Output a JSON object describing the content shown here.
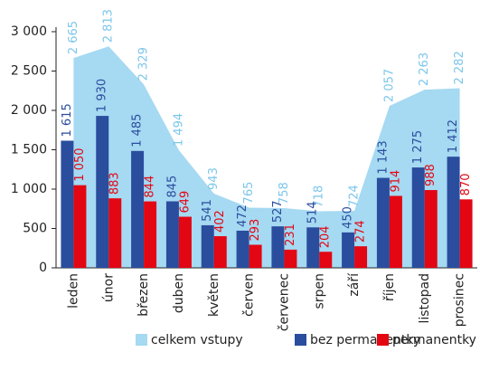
{
  "chart_data": {
    "type": "bar",
    "categories": [
      "leden",
      "únor",
      "březen",
      "duben",
      "květen",
      "červen",
      "červenec",
      "srpen",
      "září",
      "říjen",
      "listopad",
      "prosinec"
    ],
    "series": [
      {
        "name": "celkem vstupy",
        "type": "area",
        "color": "#a6d9f2",
        "label_color": "#7cc6ea",
        "values": [
          2665,
          2813,
          2329,
          1494,
          943,
          765,
          758,
          718,
          724,
          2057,
          2263,
          2282
        ],
        "value_labels": [
          "2 665",
          "2 813",
          "2 329",
          "1 494",
          "943",
          "765",
          "758",
          "718",
          "724",
          "2 057",
          "2 263",
          "2 282"
        ]
      },
      {
        "name": "bez permanentky",
        "type": "bar",
        "color": "#2a4d9e",
        "label_color": "#2a4d9e",
        "values": [
          1615,
          1930,
          1485,
          845,
          541,
          472,
          527,
          514,
          450,
          1143,
          1275,
          1412
        ],
        "value_labels": [
          "1 615",
          "1 930",
          "1 485",
          "845",
          "541",
          "472",
          "527",
          "514",
          "450",
          "1 143",
          "1 275",
          "1 412"
        ]
      },
      {
        "name": "permanentky",
        "type": "bar",
        "color": "#e30613",
        "label_color": "#e30613",
        "values": [
          1050,
          883,
          844,
          649,
          402,
          293,
          231,
          204,
          274,
          914,
          988,
          870
        ],
        "value_labels": [
          "1 050",
          "883",
          "844",
          "649",
          "402",
          "293",
          "231",
          "204",
          "274",
          "914",
          "988",
          "870"
        ]
      }
    ],
    "ylim": [
      0,
      3000
    ],
    "yticks": [
      0,
      500,
      {
        "value": 1000,
        "label": "1 000"
      },
      {
        "value": 1500,
        "label": "1 500"
      },
      {
        "value": 2000,
        "label": "2 000"
      },
      {
        "value": 2500,
        "label": "2 500"
      },
      {
        "value": 3000,
        "label": "3 000"
      }
    ]
  }
}
